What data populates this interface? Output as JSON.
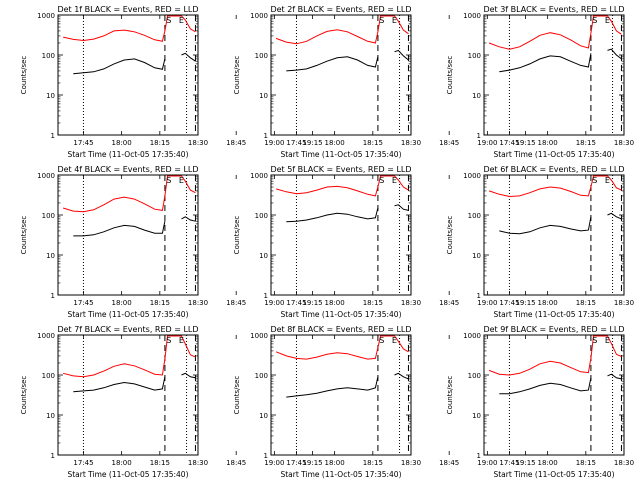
{
  "chart_data": [
    {
      "type": "line",
      "title": "Det 1f BLACK = Events, RED = LLD",
      "xlabel": "Start Time (11-Oct-05 17:35:40)",
      "ylabel": "Counts/sec",
      "x_ticks": [
        "17:45",
        "18:00",
        "18:15",
        "18:30",
        "18:45",
        "19:00",
        "19:15"
      ],
      "y_ticks": [
        "1",
        "10",
        "100",
        "1000"
      ],
      "ylim": [
        1,
        1000
      ],
      "xlim": [
        -10,
        45
      ],
      "y_scale": "log",
      "markers": [
        "S",
        "E"
      ],
      "x": [
        -8,
        -4,
        0,
        4,
        8,
        12,
        16,
        20,
        24,
        28,
        31,
        32,
        33,
        33.5,
        37,
        38.5,
        40,
        42,
        44
      ],
      "series": [
        {
          "color": "#ff0000",
          "values": [
            280,
            245,
            230,
            250,
            300,
            400,
            420,
            380,
            310,
            240,
            220,
            400,
            1050,
            1000,
            1000,
            980,
            750,
            450,
            380
          ]
        },
        {
          "color": "#000000",
          "values": [
            null,
            34,
            36,
            38,
            45,
            60,
            75,
            80,
            65,
            48,
            44,
            80,
            null,
            null,
            null,
            100,
            110,
            85,
            70
          ]
        }
      ]
    },
    {
      "type": "line",
      "title": "Det 2f BLACK = Events, RED = LLD",
      "xlabel": "Start Time (11-Oct-05 17:35:40)",
      "ylabel": "Counts/sec",
      "x_ticks": [
        "17:45",
        "18:00",
        "18:15",
        "18:30",
        "18:45",
        "19:00",
        "19:15"
      ],
      "y_ticks": [
        "1",
        "10",
        "100",
        "1000"
      ],
      "ylim": [
        1,
        1000
      ],
      "xlim": [
        -10,
        45
      ],
      "y_scale": "log",
      "markers": [
        "S",
        "E"
      ],
      "x": [
        -8,
        -4,
        0,
        4,
        8,
        12,
        16,
        20,
        24,
        28,
        31,
        32,
        33,
        33.5,
        37,
        38.5,
        40,
        42,
        44
      ],
      "series": [
        {
          "color": "#ff0000",
          "values": [
            260,
            210,
            190,
            220,
            300,
            390,
            430,
            380,
            290,
            220,
            200,
            380,
            1050,
            1000,
            1000,
            960,
            700,
            420,
            340
          ]
        },
        {
          "color": "#000000",
          "values": [
            null,
            40,
            42,
            45,
            55,
            70,
            85,
            90,
            75,
            55,
            50,
            90,
            null,
            null,
            null,
            120,
            130,
            95,
            75
          ]
        }
      ]
    },
    {
      "type": "line",
      "title": "Det 3f BLACK = Events, RED = LLD",
      "xlabel": "Start Time (11-Oct-05 17:35:40)",
      "ylabel": "Counts/sec",
      "x_ticks": [
        "17:45",
        "18:00",
        "18:15",
        "18:30",
        "18:45",
        "19:00",
        "19:15"
      ],
      "y_ticks": [
        "1",
        "10",
        "100",
        "1000"
      ],
      "ylim": [
        1,
        1000
      ],
      "xlim": [
        -10,
        45
      ],
      "y_scale": "log",
      "markers": [
        "S",
        "E"
      ],
      "x": [
        -8,
        -4,
        0,
        4,
        8,
        12,
        16,
        20,
        24,
        28,
        31,
        32,
        33,
        33.5,
        37,
        38.5,
        40,
        42,
        44
      ],
      "series": [
        {
          "color": "#ff0000",
          "values": [
            200,
            160,
            140,
            160,
            220,
            310,
            360,
            320,
            240,
            170,
            150,
            350,
            1050,
            1000,
            1000,
            960,
            700,
            400,
            330
          ]
        },
        {
          "color": "#000000",
          "values": [
            null,
            38,
            42,
            48,
            60,
            80,
            95,
            90,
            70,
            55,
            50,
            110,
            null,
            null,
            null,
            130,
            140,
            100,
            80
          ]
        }
      ]
    },
    {
      "type": "line",
      "title": "Det 4f BLACK = Events, RED = LLD",
      "xlabel": "Start Time (11-Oct-05 17:35:40)",
      "ylabel": "Counts/sec",
      "x_ticks": [
        "17:45",
        "18:00",
        "18:15",
        "18:30",
        "18:45",
        "19:00",
        "19:15"
      ],
      "y_ticks": [
        "1",
        "10",
        "100",
        "1000"
      ],
      "ylim": [
        1,
        1000
      ],
      "xlim": [
        -10,
        45
      ],
      "y_scale": "log",
      "markers": [
        "S",
        "E"
      ],
      "x": [
        -8,
        -4,
        0,
        4,
        8,
        12,
        16,
        20,
        24,
        28,
        31,
        32,
        33,
        33.5,
        37,
        38.5,
        40,
        42,
        44
      ],
      "series": [
        {
          "color": "#ff0000",
          "values": [
            150,
            125,
            120,
            135,
            180,
            250,
            280,
            250,
            190,
            140,
            130,
            300,
            1050,
            1000,
            1000,
            960,
            700,
            420,
            360
          ]
        },
        {
          "color": "#000000",
          "values": [
            null,
            30,
            30,
            32,
            38,
            48,
            55,
            52,
            42,
            35,
            35,
            70,
            null,
            null,
            null,
            80,
            90,
            75,
            70
          ]
        }
      ]
    },
    {
      "type": "line",
      "title": "Det 5f BLACK = Events, RED = LLD",
      "xlabel": "Start Time (11-Oct-05 17:35:40)",
      "ylabel": "Counts/sec",
      "x_ticks": [
        "17:45",
        "18:00",
        "18:15",
        "18:30",
        "18:45",
        "19:00",
        "19:15"
      ],
      "y_ticks": [
        "1",
        "10",
        "100",
        "1000"
      ],
      "ylim": [
        1,
        1000
      ],
      "xlim": [
        -10,
        45
      ],
      "y_scale": "log",
      "markers": [
        "S",
        "E"
      ],
      "x": [
        -8,
        -4,
        0,
        4,
        8,
        12,
        16,
        20,
        24,
        28,
        31,
        32,
        33,
        33.5,
        37,
        38.5,
        40,
        42,
        44
      ],
      "series": [
        {
          "color": "#ff0000",
          "values": [
            450,
            380,
            340,
            360,
            420,
            500,
            520,
            480,
            400,
            330,
            300,
            500,
            1050,
            1000,
            1000,
            960,
            750,
            500,
            420
          ]
        },
        {
          "color": "#000000",
          "values": [
            null,
            68,
            70,
            75,
            85,
            100,
            110,
            105,
            90,
            80,
            85,
            150,
            null,
            null,
            null,
            170,
            180,
            140,
            130
          ]
        }
      ]
    },
    {
      "type": "line",
      "title": "Det 6f BLACK = Events, RED = LLD",
      "xlabel": "Start Time (11-Oct-05 17:35:40)",
      "ylabel": "Counts/sec",
      "x_ticks": [
        "17:45",
        "18:00",
        "18:15",
        "18:30",
        "18:45",
        "19:00",
        "19:15"
      ],
      "y_ticks": [
        "1",
        "10",
        "100",
        "1000"
      ],
      "ylim": [
        1,
        1000
      ],
      "xlim": [
        -10,
        45
      ],
      "y_scale": "log",
      "markers": [
        "S",
        "E"
      ],
      "x": [
        -8,
        -4,
        0,
        4,
        8,
        12,
        16,
        20,
        24,
        28,
        31,
        32,
        33,
        33.5,
        37,
        38.5,
        40,
        42,
        44
      ],
      "series": [
        {
          "color": "#ff0000",
          "values": [
            400,
            330,
            290,
            300,
            360,
            450,
            500,
            470,
            390,
            310,
            300,
            500,
            1050,
            1000,
            1000,
            960,
            750,
            480,
            420
          ]
        },
        {
          "color": "#000000",
          "values": [
            null,
            40,
            35,
            34,
            38,
            48,
            55,
            52,
            45,
            40,
            42,
            90,
            null,
            null,
            null,
            100,
            110,
            90,
            80
          ]
        }
      ]
    },
    {
      "type": "line",
      "title": "Det 7f BLACK = Events, RED = LLD",
      "xlabel": "Start Time (11-Oct-05 17:35:40)",
      "ylabel": "Counts/sec",
      "x_ticks": [
        "17:45",
        "18:00",
        "18:15",
        "18:30",
        "18:45",
        "19:00",
        "19:15"
      ],
      "y_ticks": [
        "1",
        "10",
        "100",
        "1000"
      ],
      "ylim": [
        1,
        1000
      ],
      "xlim": [
        -10,
        45
      ],
      "y_scale": "log",
      "markers": [
        "S",
        "E"
      ],
      "x": [
        -8,
        -4,
        0,
        4,
        8,
        12,
        16,
        20,
        24,
        28,
        31,
        32,
        33,
        33.5,
        37,
        38.5,
        40,
        42,
        44
      ],
      "series": [
        {
          "color": "#ff0000",
          "values": [
            110,
            95,
            90,
            100,
            125,
            165,
            190,
            170,
            135,
            105,
            100,
            250,
            1050,
            1000,
            1000,
            960,
            600,
            320,
            280
          ]
        },
        {
          "color": "#000000",
          "values": [
            null,
            38,
            40,
            42,
            48,
            58,
            65,
            60,
            50,
            42,
            45,
            90,
            null,
            null,
            null,
            100,
            110,
            90,
            85
          ]
        }
      ]
    },
    {
      "type": "line",
      "title": "Det 8f BLACK = Events, RED = LLD",
      "xlabel": "Start Time (11-Oct-05 17:35:40)",
      "ylabel": "Counts/sec",
      "x_ticks": [
        "17:45",
        "18:00",
        "18:15",
        "18:30",
        "18:45",
        "19:00",
        "19:15"
      ],
      "y_ticks": [
        "1",
        "10",
        "100",
        "1000"
      ],
      "ylim": [
        1,
        1000
      ],
      "xlim": [
        -10,
        45
      ],
      "y_scale": "log",
      "markers": [
        "S",
        "E"
      ],
      "x": [
        -8,
        -4,
        0,
        4,
        8,
        12,
        16,
        20,
        24,
        28,
        31,
        32,
        33,
        33.5,
        37,
        38.5,
        40,
        42,
        44
      ],
      "series": [
        {
          "color": "#ff0000",
          "values": [
            380,
            300,
            260,
            250,
            280,
            330,
            360,
            340,
            290,
            250,
            260,
            480,
            1050,
            1000,
            1000,
            960,
            700,
            450,
            380
          ]
        },
        {
          "color": "#000000",
          "values": [
            null,
            28,
            30,
            32,
            35,
            40,
            45,
            48,
            45,
            42,
            48,
            90,
            null,
            null,
            null,
            100,
            110,
            90,
            80
          ]
        }
      ]
    },
    {
      "type": "line",
      "title": "Det 9f BLACK = Events, RED = LLD",
      "xlabel": "Start Time (11-Oct-05 17:35:40)",
      "ylabel": "Counts/sec",
      "x_ticks": [
        "17:45",
        "18:00",
        "18:15",
        "18:30",
        "18:45",
        "19:00",
        "19:15"
      ],
      "y_ticks": [
        "1",
        "10",
        "100",
        "1000"
      ],
      "ylim": [
        1,
        1000
      ],
      "xlim": [
        -10,
        45
      ],
      "y_scale": "log",
      "markers": [
        "S",
        "E"
      ],
      "x": [
        -8,
        -4,
        0,
        4,
        8,
        12,
        16,
        20,
        24,
        28,
        31,
        32,
        33,
        33.5,
        37,
        38.5,
        40,
        42,
        44
      ],
      "series": [
        {
          "color": "#ff0000",
          "values": [
            130,
            105,
            100,
            110,
            140,
            190,
            220,
            200,
            155,
            120,
            115,
            260,
            1050,
            1000,
            1000,
            960,
            620,
            330,
            290
          ]
        },
        {
          "color": "#000000",
          "values": [
            null,
            34,
            34,
            38,
            45,
            55,
            62,
            58,
            48,
            40,
            42,
            85,
            null,
            null,
            null,
            95,
            105,
            85,
            80
          ]
        }
      ]
    }
  ]
}
